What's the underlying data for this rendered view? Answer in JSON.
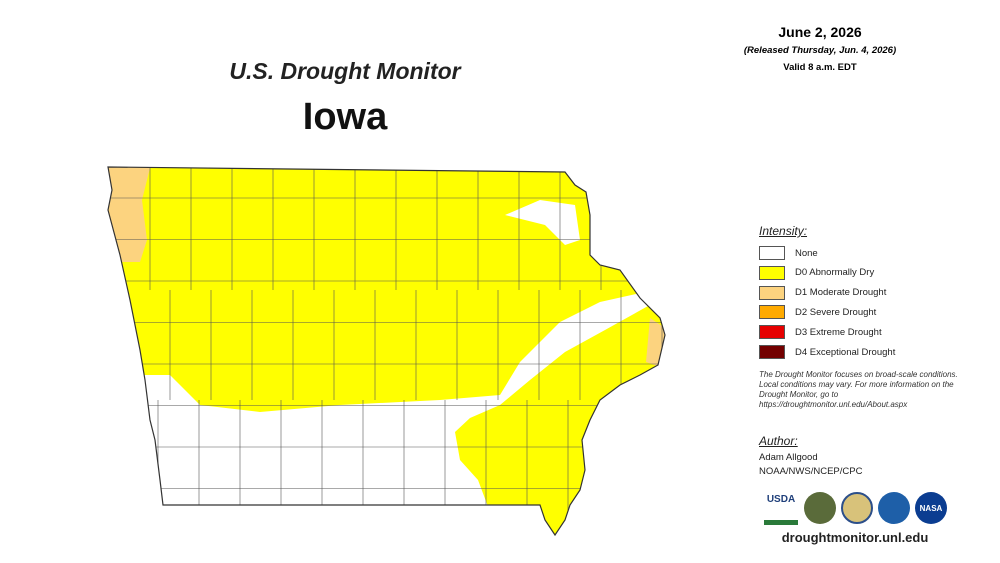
{
  "map": {
    "title": "U.S. Drought Monitor",
    "state": "Iowa",
    "date": "June 2, 2026",
    "released": "(Released Thursday, Jun. 4, 2026)",
    "valid": "Valid 8 a.m. EDT",
    "legend": {
      "title": "Intensity:",
      "items": [
        {
          "label": "None",
          "color": "#ffffff"
        },
        {
          "label": "D0 Abnormally Dry",
          "color": "#ffff00"
        },
        {
          "label": "D1 Moderate Drought",
          "color": "#fcd37f"
        },
        {
          "label": "D2 Severe Drought",
          "color": "#ffaa00"
        },
        {
          "label": "D3 Extreme Drought",
          "color": "#e60000"
        },
        {
          "label": "D4 Exceptional Drought",
          "color": "#730000"
        }
      ]
    },
    "note": "The Drought Monitor focuses on broad-scale conditions. Local conditions may vary. For more information on the Drought Monitor, go to https://droughtmonitor.unl.edu/About.aspx",
    "author": {
      "title": "Author:",
      "name": "Adam Allgood",
      "org": "NOAA/NWS/NCEP/CPC"
    },
    "logos": [
      "USDA",
      "NASA"
    ],
    "url": "droughtmonitor.unl.edu"
  }
}
